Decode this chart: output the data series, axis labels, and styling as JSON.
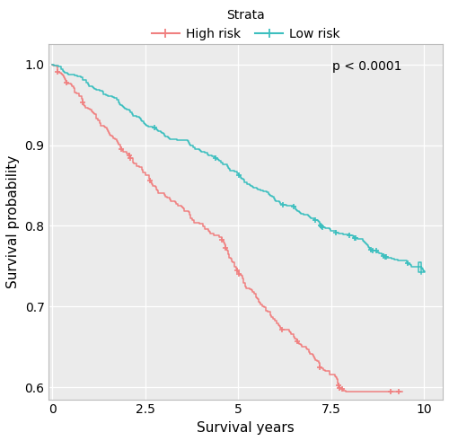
{
  "xlabel": "Survival years",
  "ylabel": "Survival probability",
  "legend_title": "Strata",
  "legend_labels": [
    "High risk",
    "Low risk"
  ],
  "high_risk_color": "#F08080",
  "low_risk_color": "#3DBFBF",
  "xlim": [
    -0.1,
    10.5
  ],
  "ylim": [
    0.585,
    1.025
  ],
  "xticks": [
    0,
    2.5,
    5.0,
    7.5,
    10.0
  ],
  "yticks": [
    0.6,
    0.7,
    0.8,
    0.9,
    1.0
  ],
  "pvalue_text": "p < 0.0001",
  "background_color": "#FFFFFF",
  "plot_bg_color": "#EBEBEB",
  "grid_color": "#FFFFFF",
  "marker_size": 4.5,
  "linewidth": 1.1
}
